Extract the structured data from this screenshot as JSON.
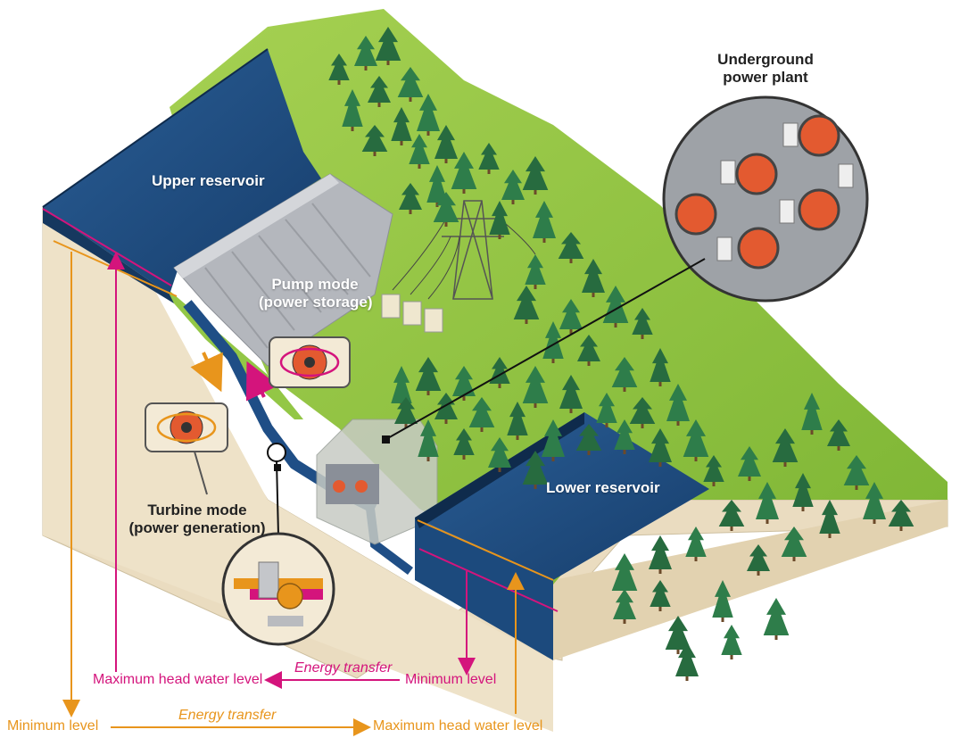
{
  "labels": {
    "upper_reservoir": "Upper reservoir",
    "lower_reservoir": "Lower reservoir",
    "pump_mode_line1": "Pump mode",
    "pump_mode_line2": "(power storage)",
    "turbine_mode_line1": "Turbine mode",
    "turbine_mode_line2": "(power generation)",
    "underground_line1": "Underground",
    "underground_line2": "power plant"
  },
  "levels": {
    "max_head_upper": "Maximum head water level",
    "min_level_lower": "Minimum level",
    "energy_transfer_pump": "Energy transfer",
    "min_level_upper": "Minimum level",
    "energy_transfer_turbine": "Energy transfer",
    "max_head_lower": "Maximum head water level"
  },
  "colors": {
    "water": "#1f4e86",
    "water_dark": "#16385f",
    "grass": "#8cc43c",
    "soil": "#eadcc0",
    "tree": "#2e7d4a",
    "pump_arrow": "#d4147c",
    "turbine_arrow": "#e8951c"
  }
}
